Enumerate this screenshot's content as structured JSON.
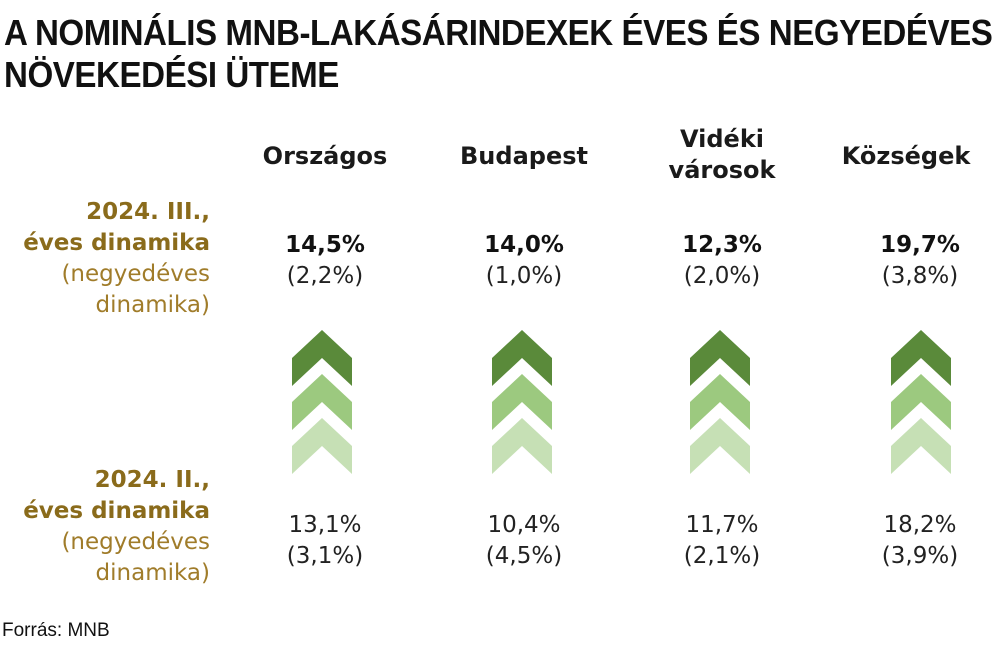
{
  "title_lines": [
    "A NOMINÁLIS MNB-LAKÁSÁRINDEXEK ÉVES ÉS NEGYEDÉVES",
    "NÖVEKEDÉSI ÜTEME"
  ],
  "columns": [
    {
      "label_lines": [
        "Országos"
      ],
      "q3": {
        "annual": "14,5%",
        "quarterly": "(2,2%)"
      },
      "q2": {
        "annual": "13,1%",
        "quarterly": "(3,1%)"
      }
    },
    {
      "label_lines": [
        "Budapest"
      ],
      "q3": {
        "annual": "14,0%",
        "quarterly": "(1,0%)"
      },
      "q2": {
        "annual": "10,4%",
        "quarterly": "(4,5%)"
      }
    },
    {
      "label_lines": [
        "Vidéki",
        "városok"
      ],
      "q3": {
        "annual": "12,3%",
        "quarterly": "(2,0%)"
      },
      "q2": {
        "annual": "11,7%",
        "quarterly": "(2,1%)"
      }
    },
    {
      "label_lines": [
        "Községek"
      ],
      "q3": {
        "annual": "19,7%",
        "quarterly": "(3,8%)"
      },
      "q2": {
        "annual": "18,2%",
        "quarterly": "(3,9%)"
      }
    }
  ],
  "row_q3": {
    "period": "2024. III.,",
    "annual": "éves dinamika",
    "quarterly_1": "(negyedéves",
    "quarterly_2": "dinamika)"
  },
  "row_q2": {
    "period": "2024. II.,",
    "annual": "éves dinamika",
    "quarterly_1": "(negyedéves",
    "quarterly_2": "dinamika)"
  },
  "arrow_icon": "up-chevron-stack-icon",
  "colors": {
    "arrow_dark": "#5a8a3a",
    "arrow_mid": "#9cc97f",
    "arrow_light": "#c6e0b5",
    "label_gold": "#8a6b1b"
  },
  "source": "Forrás: MNB"
}
